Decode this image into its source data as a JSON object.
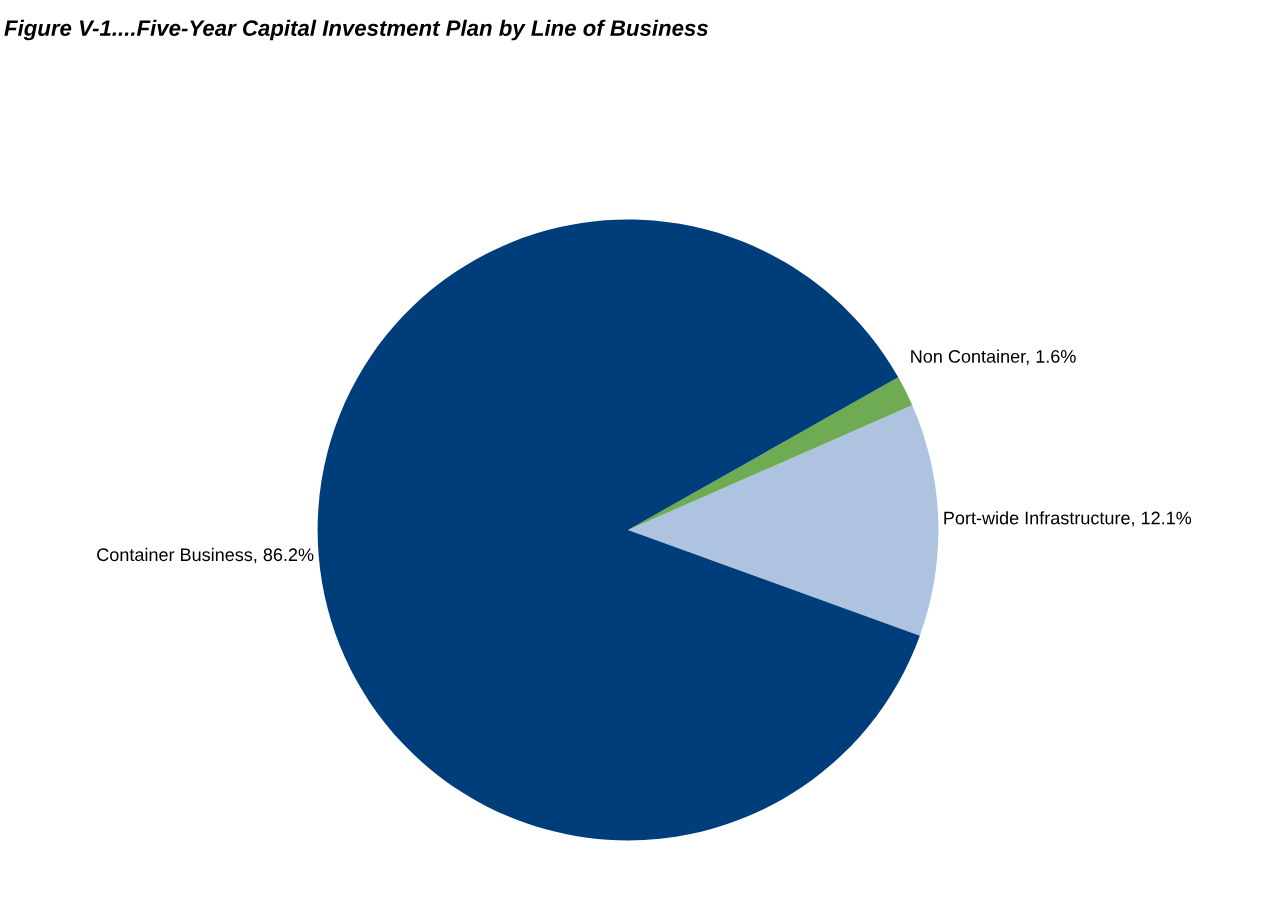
{
  "chart_data": {
    "type": "pie",
    "title": "Figure V-1....Five-Year Capital Investment Plan by Line of Business",
    "categories": [
      "Port-wide Infrastructure",
      "Non Container",
      "Container Business"
    ],
    "values": [
      12.1,
      1.6,
      86.2
    ],
    "value_labels": [
      "12.1%",
      "1.6%",
      "86.2%"
    ],
    "colors": [
      "#adc3df",
      "#6fab52",
      "#003d7b"
    ],
    "legend": false
  }
}
